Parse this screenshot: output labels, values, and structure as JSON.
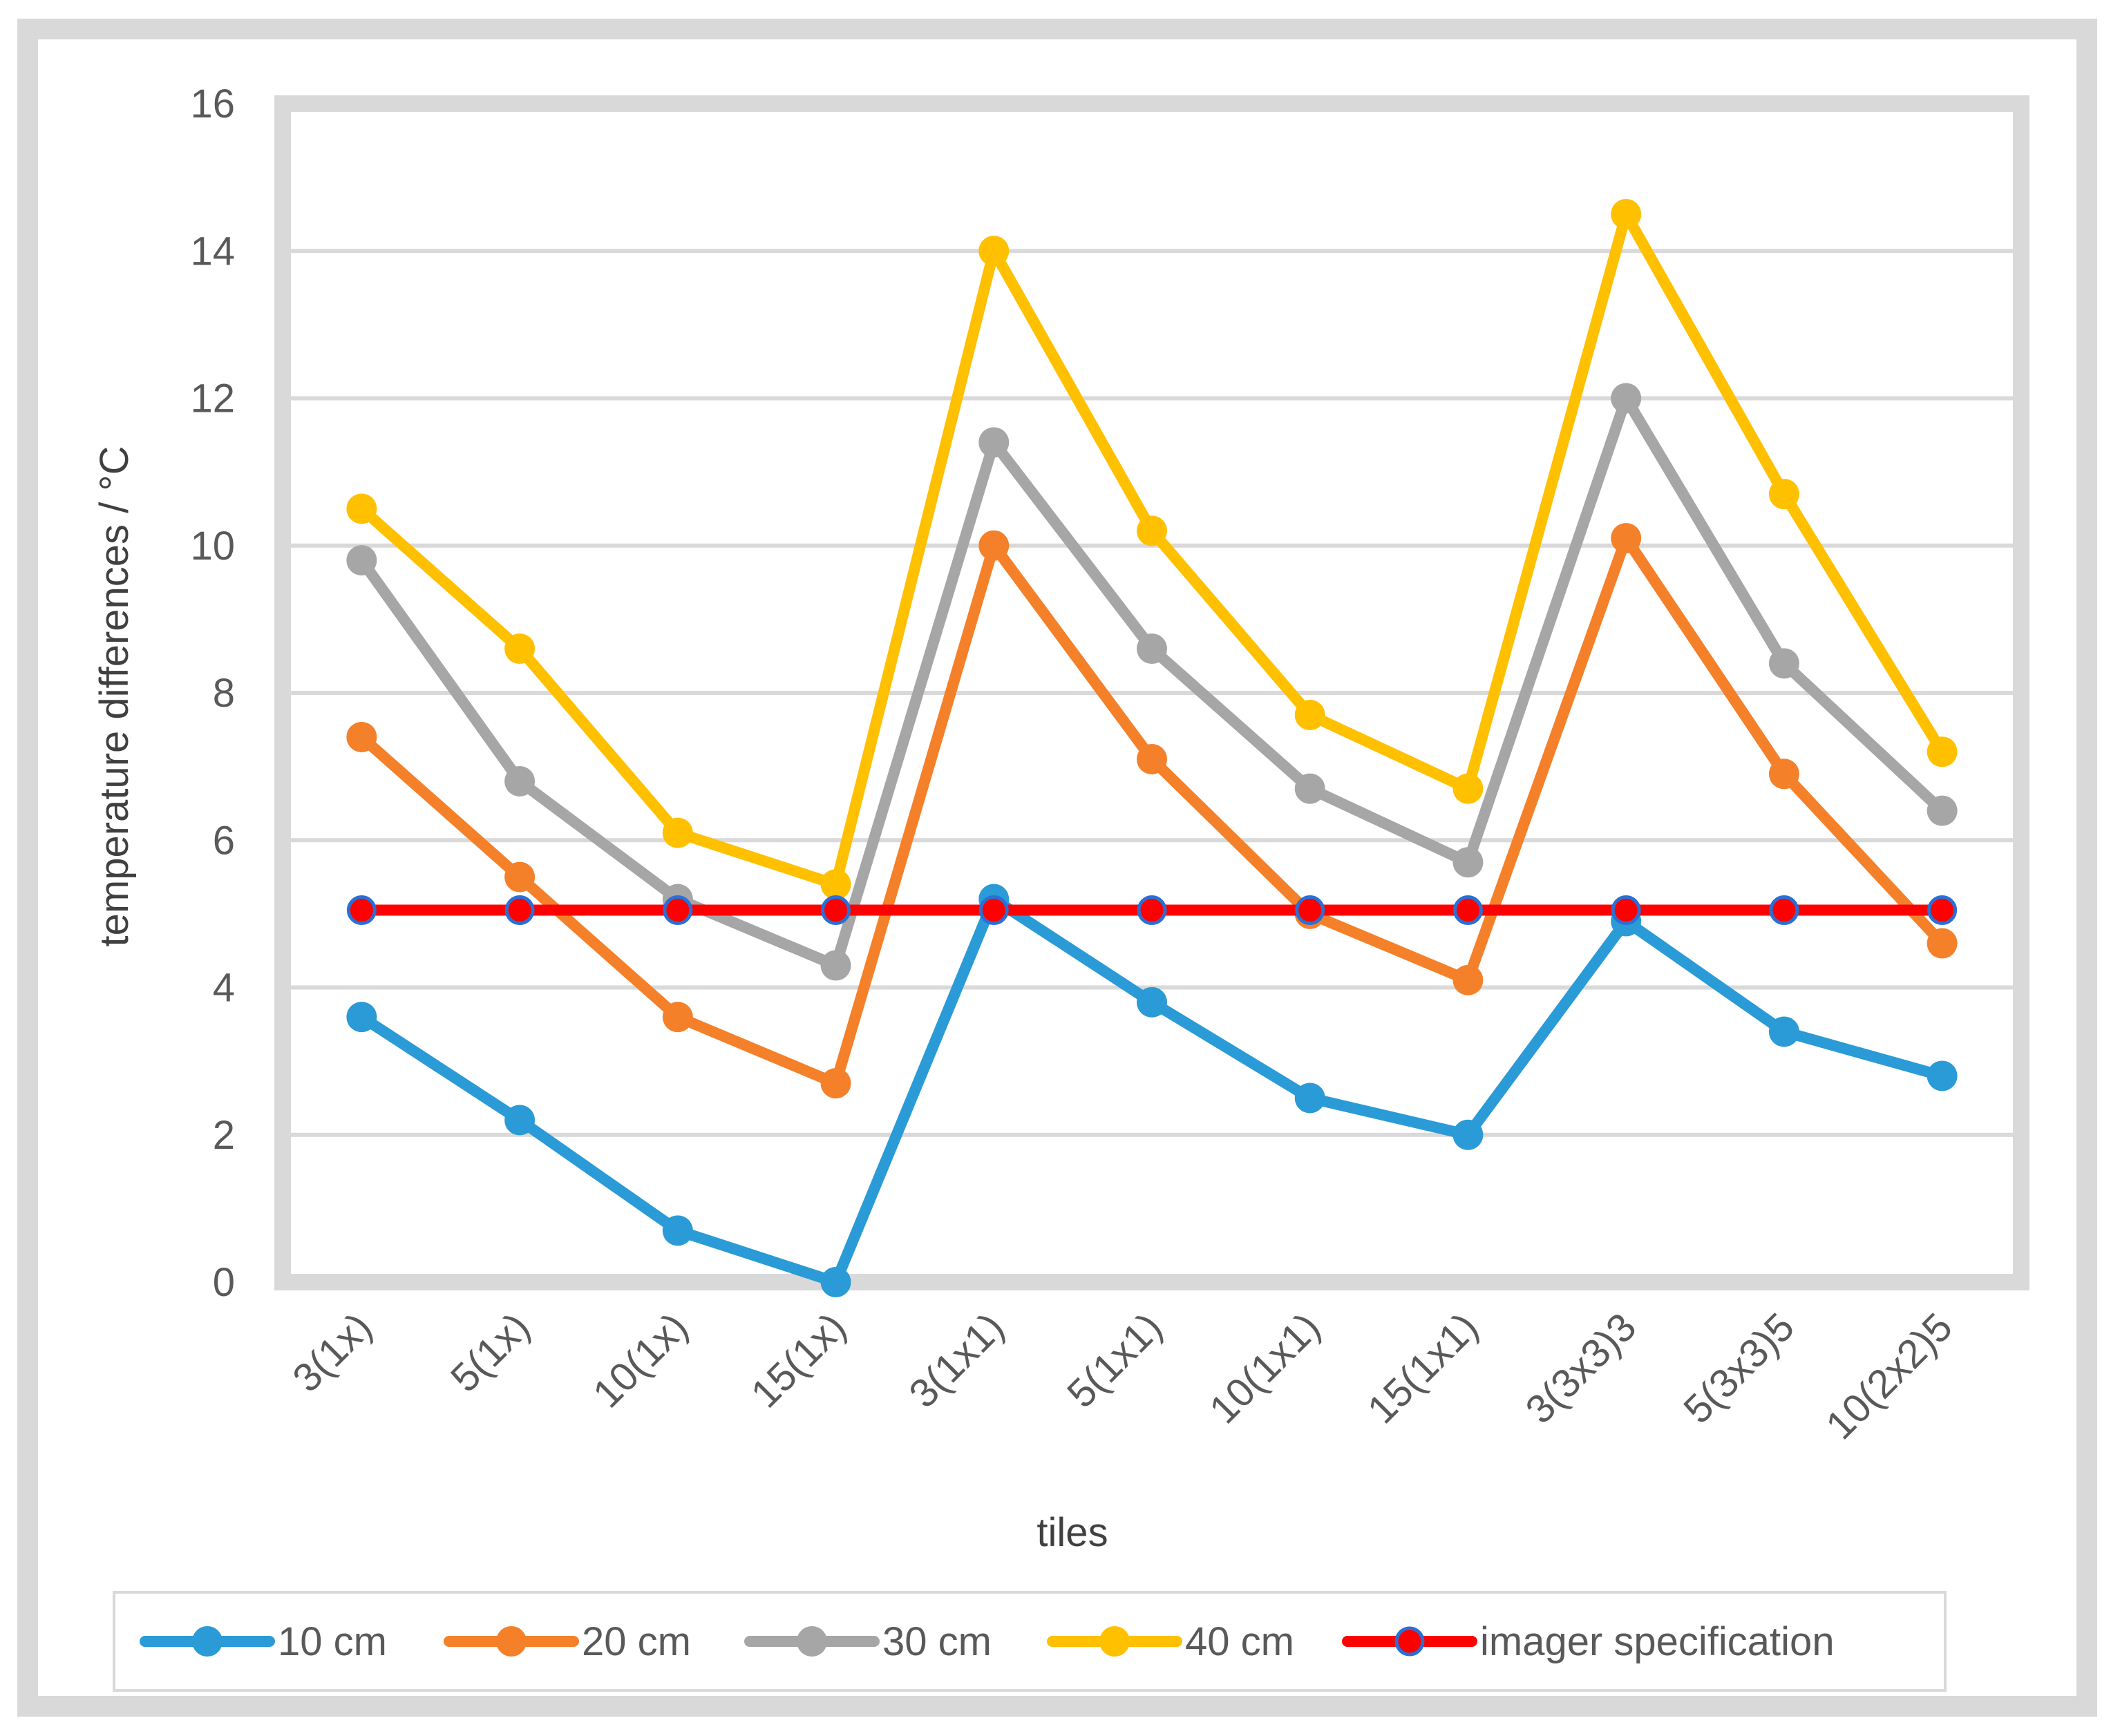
{
  "chart_data": {
    "type": "line",
    "title": "",
    "xlabel": "tiles",
    "ylabel": "temperature differences / °C",
    "ylim": [
      0,
      16
    ],
    "yticks": [
      0,
      2,
      4,
      6,
      8,
      10,
      12,
      14,
      16
    ],
    "grid": true,
    "legend_position": "bottom",
    "categories": [
      "3(1x)",
      "5(1x)",
      "10(1x)",
      "15(1x)",
      "3(1x1)",
      "5(1x1)",
      "10(1x1)",
      "15(1x1)",
      "3(3x3)3",
      "5(3x3)5",
      "10(2x2)5"
    ],
    "series": [
      {
        "name": "10 cm",
        "color": "#2a9bd6",
        "values": [
          3.6,
          2.2,
          0.7,
          0.0,
          5.2,
          3.8,
          2.5,
          2.0,
          4.9,
          3.4,
          2.8
        ]
      },
      {
        "name": "20 cm",
        "color": "#f5802a",
        "values": [
          7.4,
          5.5,
          3.6,
          2.7,
          10.0,
          7.1,
          5.0,
          4.1,
          10.1,
          6.9,
          4.6
        ]
      },
      {
        "name": "30 cm",
        "color": "#a6a6a6",
        "values": [
          9.8,
          6.8,
          5.2,
          4.3,
          11.4,
          8.6,
          6.7,
          5.7,
          12.0,
          8.4,
          6.4
        ]
      },
      {
        "name": "40 cm",
        "color": "#ffc000",
        "values": [
          10.5,
          8.6,
          6.1,
          5.4,
          14.0,
          10.2,
          7.7,
          6.7,
          14.5,
          10.7,
          7.2
        ]
      },
      {
        "name": "imager specification",
        "color": "#ff0000",
        "marker_fill": "#ff0000",
        "marker_stroke": "#2a6fd6",
        "values": [
          5.05,
          5.05,
          5.05,
          5.05,
          5.05,
          5.05,
          5.05,
          5.05,
          5.05,
          5.05,
          5.05
        ]
      }
    ]
  },
  "colors": {
    "frame": "#d9d9d9",
    "grid": "#d9d9d9",
    "text": "#595959",
    "axis_title": "#404040"
  }
}
